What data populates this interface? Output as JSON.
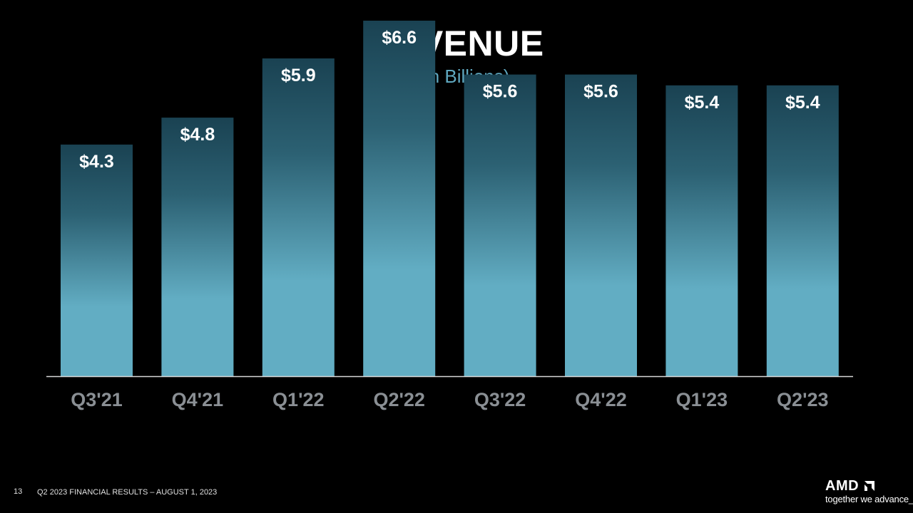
{
  "slide": {
    "title": "REVENUE",
    "subtitle": "($ in Billions)",
    "page_number": "13",
    "footer": "Q2 2023 FINANCIAL RESULTS – AUGUST 1, 2023"
  },
  "logo": {
    "wordmark": "AMD",
    "tagline": "together we advance_"
  },
  "colors": {
    "background": "#000000",
    "bar_top": "#1a4252",
    "bar_bottom": "#62adc3",
    "subtitle": "#5fa8c0",
    "tick_label": "#8a8f94",
    "axis": "#d9d9d9"
  },
  "chart_data": {
    "type": "bar",
    "title": "REVENUE",
    "subtitle": "($ in Billions)",
    "categories": [
      "Q3'21",
      "Q4'21",
      "Q1'22",
      "Q2'22",
      "Q3'22",
      "Q4'22",
      "Q1'23",
      "Q2'23"
    ],
    "values": [
      4.3,
      4.8,
      5.9,
      6.6,
      5.6,
      5.6,
      5.4,
      5.4
    ],
    "data_labels": [
      "$4.3",
      "$4.8",
      "$5.9",
      "$6.6",
      "$5.6",
      "$5.6",
      "$5.4",
      "$5.4"
    ],
    "xlabel": "",
    "ylabel": "",
    "grid": false,
    "legend": "none"
  }
}
